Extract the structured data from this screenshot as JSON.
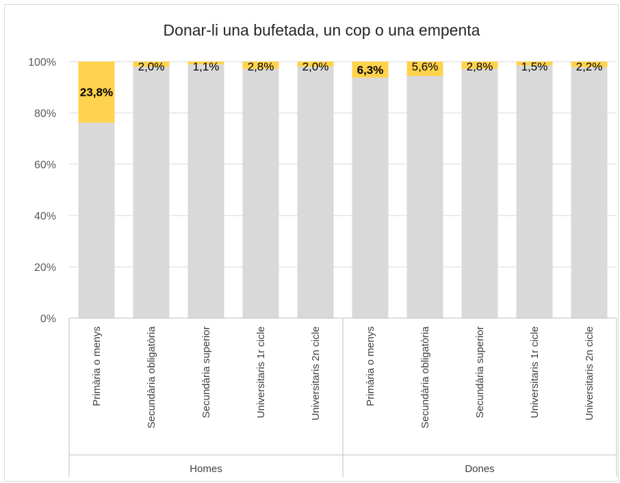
{
  "chart_data": {
    "type": "bar",
    "stacked": true,
    "percent_stacked": true,
    "title": "Donar-li una bufetada, un cop o una empenta",
    "xlabel": "",
    "ylabel": "",
    "ylim": [
      0,
      100
    ],
    "yticks": [
      "0%",
      "20%",
      "40%",
      "60%",
      "80%",
      "100%"
    ],
    "grid": true,
    "legend": "none",
    "groups": [
      {
        "label": "Homes",
        "count": 5
      },
      {
        "label": "Dones",
        "count": 5
      }
    ],
    "categories": [
      "Primària o menys",
      "Secundària obligatòria",
      "Secundària superior",
      "Universitaris 1r cicle",
      "Universitaris 2n cicle",
      "Primària o menys",
      "Secundària obligatòria",
      "Secundària superior",
      "Universitaris 1r cicle",
      "Universitaris 2n cicle"
    ],
    "series": [
      {
        "values": [
          76.2,
          98.0,
          98.9,
          97.2,
          98.0,
          93.7,
          94.4,
          97.2,
          98.5,
          97.8
        ],
        "color": "#d9d9d9"
      },
      {
        "values": [
          23.8,
          2.0,
          1.1,
          2.8,
          2.0,
          6.3,
          5.6,
          2.8,
          1.5,
          2.2
        ],
        "color": "#ffd24d"
      }
    ],
    "data_labels": [
      "23,8%",
      "2,0%",
      "1,1%",
      "2,8%",
      "2,0%",
      "6,3%",
      "5,6%",
      "2,8%",
      "1,5%",
      "2,2%"
    ],
    "bold_labels": [
      true,
      false,
      false,
      false,
      false,
      true,
      false,
      false,
      false,
      false
    ]
  }
}
